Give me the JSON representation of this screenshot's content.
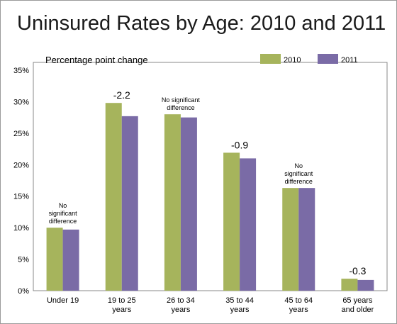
{
  "chart_data": {
    "type": "bar",
    "title": "Uninsured Rates by Age: 2010 and 2011",
    "subtitle": "Percentage point change",
    "xlabel": "",
    "ylabel": "",
    "ylim": [
      0,
      35
    ],
    "yticks": [
      "0%",
      "5%",
      "10%",
      "15%",
      "20%",
      "25%",
      "30%",
      "35%"
    ],
    "ytick_values": [
      0,
      5,
      10,
      15,
      20,
      25,
      30,
      35
    ],
    "grid": false,
    "legend_position": "top-right",
    "categories": [
      [
        "Under 19"
      ],
      [
        "19 to 25",
        "years"
      ],
      [
        "26 to 34",
        "years"
      ],
      [
        "35 to 44",
        "years"
      ],
      [
        "45 to 64",
        "years"
      ],
      [
        "65 years",
        "and older"
      ]
    ],
    "series": [
      {
        "name": "2010",
        "color": "#a6b45c",
        "values": [
          10.0,
          29.8,
          28.0,
          21.9,
          16.3,
          1.9
        ]
      },
      {
        "name": "2011",
        "color": "#7a6ba6",
        "values": [
          9.7,
          27.7,
          27.5,
          21.0,
          16.3,
          1.7
        ]
      }
    ],
    "annotations": [
      {
        "lines": [
          "No",
          "significant",
          "difference"
        ],
        "size": "small"
      },
      {
        "lines": [
          "-2.2"
        ],
        "size": "big"
      },
      {
        "lines": [
          "No significant",
          "difference"
        ],
        "size": "small"
      },
      {
        "lines": [
          "-0.9"
        ],
        "size": "big"
      },
      {
        "lines": [
          "No",
          "significant",
          "difference"
        ],
        "size": "small"
      },
      {
        "lines": [
          "-0.3"
        ],
        "size": "big"
      }
    ]
  }
}
